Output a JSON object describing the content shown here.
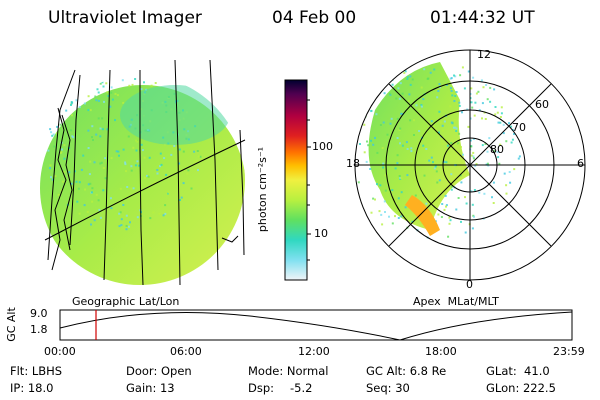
{
  "header": {
    "instrument": "Ultraviolet Imager",
    "date": "04 Feb 00",
    "time": "01:44:32 UT"
  },
  "geographic_panel": {
    "caption": "Geographic Lat/Lon"
  },
  "apex_panel": {
    "caption": "Apex  MLat/MLT",
    "mlt_labels": {
      "top": "12",
      "left": "18",
      "right": "6",
      "bottom": "0"
    },
    "lat_labels": [
      "60",
      "70",
      "80"
    ]
  },
  "colorbar": {
    "unit_label": "photon cm⁻²s⁻¹",
    "ticks": [
      "100",
      "10"
    ],
    "scale": "log",
    "colors": [
      "#000030",
      "#500050",
      "#b00040",
      "#e00020",
      "#ff7000",
      "#ffc000",
      "#f0f040",
      "#b8f040",
      "#60e060",
      "#30d8c0",
      "#80e0f0",
      "#e8f0f8"
    ]
  },
  "orbit": {
    "axis_title": "GC Alt",
    "ymax": "9.0",
    "ymin": "1.8",
    "times": [
      "00:00",
      "06:00",
      "12:00",
      "18:00",
      "23:59"
    ],
    "marker_color": "#d00000"
  },
  "info": {
    "flt": "Flt: LBHS",
    "ip": "IP: 18.0",
    "door": "Door: Open",
    "gain": "Gain: 13",
    "mode": "Mode: Normal",
    "dsp_label": "Dsp:",
    "dsp_value": "-5.2",
    "gcalt": "GC Alt: 6.8 Re",
    "seq": "Seq: 30",
    "glat": "GLat:  41.0",
    "glon": "GLon: 222.5"
  }
}
